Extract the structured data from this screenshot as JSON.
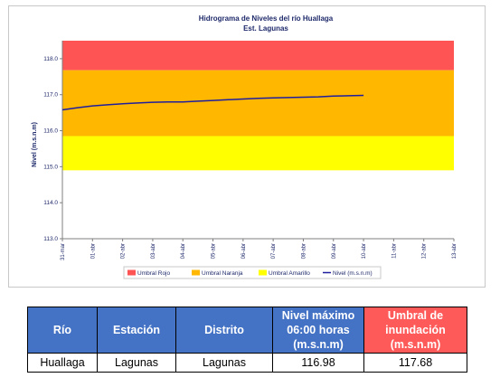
{
  "chart_data": {
    "type": "line",
    "title": "Hidrograma de Niveles del río Huallaga",
    "subtitle": "Est. Lagunas",
    "ylabel": "Nivel (m.s.n.m)",
    "xlabel": "",
    "ylim": [
      113.0,
      118.5
    ],
    "yticks": [
      "113.0",
      "114.0",
      "115.0",
      "116.0",
      "117.0",
      "118.0"
    ],
    "categories": [
      "31-mar",
      "01-abr",
      "02-abr",
      "03-abr",
      "04-abr",
      "05-abr",
      "06-abr",
      "07-abr",
      "08-abr",
      "09-abr",
      "10-abr",
      "11-abr",
      "12-abr",
      "13-abr"
    ],
    "bands": [
      {
        "name": "Umbral Rojo",
        "from": 117.68,
        "to": 118.5,
        "color": "#ff5454"
      },
      {
        "name": "Umbral Naranja",
        "from": 115.85,
        "to": 117.68,
        "color": "#ffb700"
      },
      {
        "name": "Umbral Amarillo",
        "from": 114.9,
        "to": 115.85,
        "color": "#ffff00"
      }
    ],
    "series": [
      {
        "name": "Nivel (m.s.n.m)",
        "color": "#1f1f9e",
        "x": [
          0,
          0.5,
          1,
          1.5,
          2,
          2.5,
          3,
          3.5,
          4,
          4.5,
          5,
          5.5,
          6,
          6.5,
          7,
          7.5,
          8,
          8.5,
          9,
          9.5,
          10
        ],
        "values": [
          116.58,
          116.64,
          116.69,
          116.72,
          116.75,
          116.77,
          116.79,
          116.8,
          116.8,
          116.82,
          116.84,
          116.86,
          116.88,
          116.9,
          116.91,
          116.92,
          116.93,
          116.94,
          116.96,
          116.97,
          116.98
        ]
      }
    ],
    "grid": false,
    "legend_position": "bottom"
  },
  "table": {
    "headers": [
      "Río",
      "Estación",
      "Distrito",
      "Nivel máximo 06:00 horas (m.s.n.m)",
      "Umbral de inundación (m.s.n.m)"
    ],
    "row": [
      "Huallaga",
      "Lagunas",
      "Lagunas",
      "116.98",
      "117.68"
    ]
  }
}
